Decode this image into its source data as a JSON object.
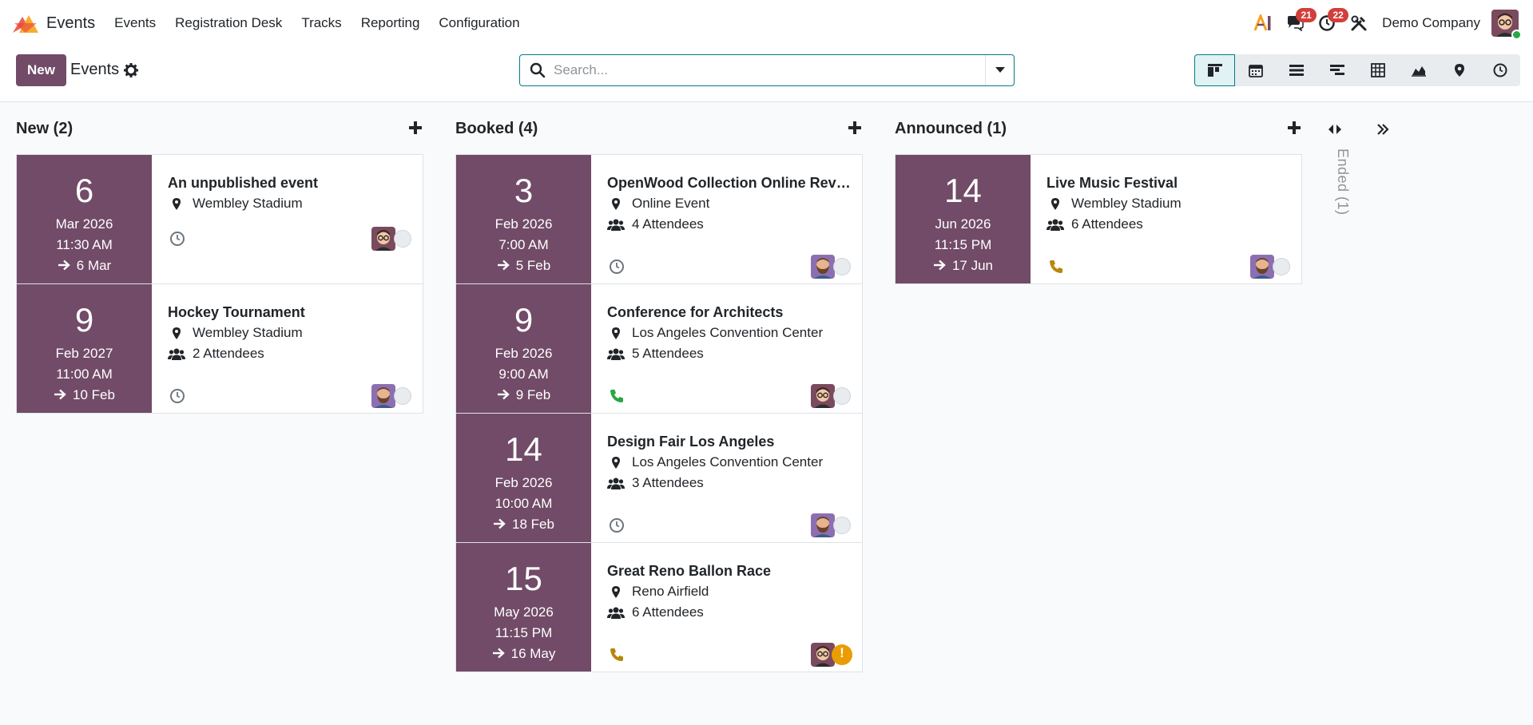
{
  "navbar": {
    "app_name": "Events",
    "menu": [
      "Events",
      "Registration Desk",
      "Tracks",
      "Reporting",
      "Configuration"
    ],
    "messages_count": "21",
    "activities_count": "22",
    "company": "Demo Company"
  },
  "control": {
    "new_label": "New",
    "title": "Events",
    "search_placeholder": "Search...",
    "views": [
      "kanban-icon",
      "calendar-icon",
      "list-icon",
      "gantt-icon",
      "pivot-icon",
      "graph-icon",
      "map-icon",
      "activity-icon"
    ]
  },
  "columns": [
    {
      "title": "New (2)",
      "cards": [
        {
          "day": "6",
          "month": "Mar 2026",
          "time": "11:30 AM",
          "end": "6 Mar",
          "title": "An unpublished event",
          "location": "Wembley Stadium",
          "attendees": "",
          "activity": "clock",
          "status": "grey",
          "assignee": "glasses"
        },
        {
          "day": "9",
          "month": "Feb 2027",
          "time": "11:00 AM",
          "end": "10 Feb",
          "title": "Hockey Tournament",
          "location": "Wembley Stadium",
          "attendees": "2 Attendees",
          "activity": "clock",
          "status": "grey",
          "assignee": "beard"
        }
      ]
    },
    {
      "title": "Booked (4)",
      "cards": [
        {
          "day": "3",
          "month": "Feb 2026",
          "time": "7:00 AM",
          "end": "5 Feb",
          "title": "OpenWood Collection Online Reveal",
          "location": "Online Event",
          "attendees": "4 Attendees",
          "activity": "clock",
          "status": "grey",
          "assignee": "beard"
        },
        {
          "day": "9",
          "month": "Feb 2026",
          "time": "9:00 AM",
          "end": "9 Feb",
          "title": "Conference for Architects",
          "location": "Los Angeles Convention Center",
          "attendees": "5 Attendees",
          "activity": "phone-green",
          "status": "grey",
          "assignee": "glasses"
        },
        {
          "day": "14",
          "month": "Feb 2026",
          "time": "10:00 AM",
          "end": "18 Feb",
          "title": "Design Fair Los Angeles",
          "location": "Los Angeles Convention Center",
          "attendees": "3 Attendees",
          "activity": "clock",
          "status": "grey",
          "assignee": "beard"
        },
        {
          "day": "15",
          "month": "May 2026",
          "time": "11:15 PM",
          "end": "16 May",
          "title": "Great Reno Ballon Race",
          "location": "Reno Airfield",
          "attendees": "6 Attendees",
          "activity": "phone-orange",
          "status": "warn",
          "assignee": "glasses"
        }
      ]
    },
    {
      "title": "Announced (1)",
      "cards": [
        {
          "day": "14",
          "month": "Jun 2026",
          "time": "11:15 PM",
          "end": "17 Jun",
          "title": "Live Music Festival",
          "location": "Wembley Stadium",
          "attendees": "6 Attendees",
          "activity": "phone-orange",
          "status": "grey",
          "assignee": "beard"
        }
      ]
    }
  ],
  "folded": {
    "label": "Ended (1)"
  },
  "colors": {
    "brand": "#714b67",
    "accent": "#017e84",
    "badge": "#d23f3a",
    "warning": "#e99d00"
  }
}
